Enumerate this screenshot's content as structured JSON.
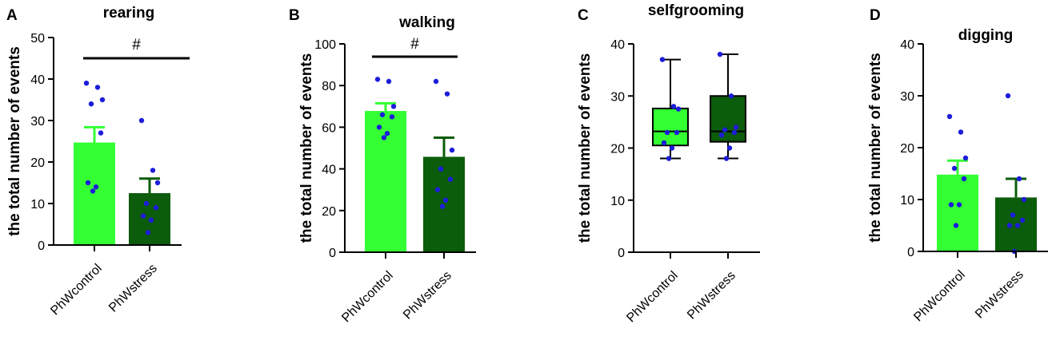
{
  "colors": {
    "control": "#33FF33",
    "stress": "#0B5C0B",
    "dots": "#1D1DD9",
    "axis": "#000000"
  },
  "chart_data": [
    {
      "panel": "A",
      "type": "bar",
      "title": "rearing",
      "ylabel": "the total number of events",
      "ylim": [
        0,
        50
      ],
      "yticks": [
        "0",
        "10",
        "20",
        "30",
        "40",
        "50"
      ],
      "categories": [
        "PhWcontrol",
        "PhWstress"
      ],
      "means": [
        24.7,
        12.5
      ],
      "sem_upper": [
        28.4,
        16.0
      ],
      "points": [
        [
          39,
          38,
          35,
          34,
          27,
          15,
          14,
          13
        ],
        [
          30,
          18,
          15,
          10,
          9,
          7,
          6,
          3
        ]
      ],
      "significance": "#"
    },
    {
      "panel": "B",
      "type": "bar",
      "title": "walking",
      "ylabel": "the total number of events",
      "ylim": [
        0,
        100
      ],
      "yticks": [
        "0",
        "20",
        "40",
        "60",
        "80",
        "100"
      ],
      "categories": [
        "PhWcontrol",
        "PhWstress"
      ],
      "means": [
        67.8,
        45.8
      ],
      "sem_upper": [
        71.5,
        55.0
      ],
      "points": [
        [
          83,
          82,
          70,
          66,
          65,
          60,
          57,
          55
        ],
        [
          82,
          76,
          49,
          40,
          35,
          30,
          25,
          22
        ]
      ],
      "significance": "#"
    },
    {
      "panel": "C",
      "type": "box",
      "title": "selfgrooming",
      "ylabel": "the total number of events",
      "ylim": [
        0,
        40
      ],
      "yticks": [
        "0",
        "10",
        "20",
        "30",
        "40"
      ],
      "categories": [
        "PhWcontrol",
        "PhWstress"
      ],
      "box": [
        {
          "min": 18,
          "q1": 20.5,
          "median": 23.2,
          "q3": 27.6,
          "max": 37
        },
        {
          "min": 18,
          "q1": 21.2,
          "median": 23.2,
          "q3": 30.0,
          "max": 38
        }
      ],
      "points": [
        [
          37,
          28,
          27.5,
          23,
          23,
          21,
          20,
          18
        ],
        [
          38,
          30,
          24,
          23.5,
          23,
          22.5,
          20,
          18
        ]
      ],
      "significance": ""
    },
    {
      "panel": "D",
      "type": "bar",
      "title": "digging",
      "ylabel": "the total number of events",
      "ylim": [
        0,
        40
      ],
      "yticks": [
        "0",
        "10",
        "20",
        "30",
        "40"
      ],
      "categories": [
        "PhWcontrol",
        "PhWstress"
      ],
      "means": [
        14.8,
        10.4
      ],
      "sem_upper": [
        17.5,
        14.0
      ],
      "points": [
        [
          26,
          23,
          18,
          16,
          14,
          9,
          9,
          5
        ],
        [
          30,
          14,
          10,
          7,
          6,
          5,
          5,
          0
        ]
      ],
      "significance": ""
    }
  ]
}
